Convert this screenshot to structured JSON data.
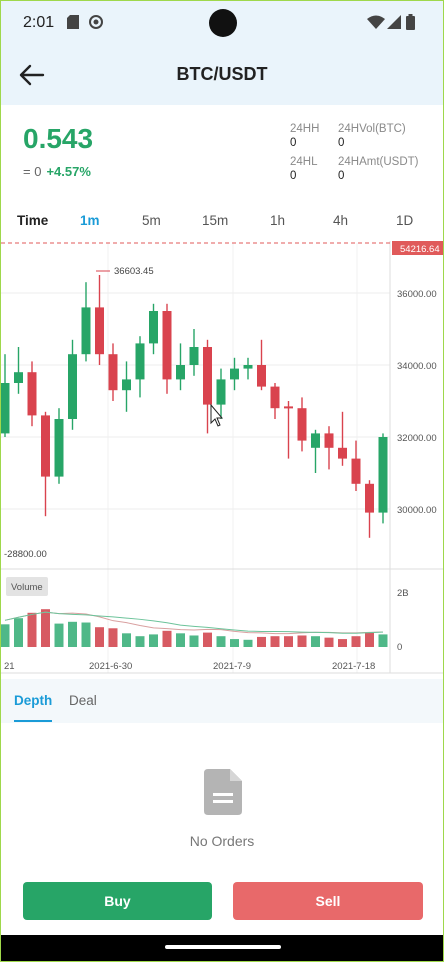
{
  "status_bar": {
    "time": "2:01"
  },
  "header": {
    "title": "BTC/USDT"
  },
  "ticker": {
    "price": "0.543",
    "approx": "= 0",
    "change": "+4.57%",
    "stats": [
      {
        "label": "24HH",
        "value": "0"
      },
      {
        "label": "24HVol(BTC)",
        "value": "0"
      },
      {
        "label": "24HL",
        "value": "0"
      },
      {
        "label": "24HAmt(USDT)",
        "value": "0"
      }
    ]
  },
  "intervals": {
    "label": "Time",
    "options": [
      "1m",
      "5m",
      "15m",
      "1h",
      "4h",
      "1D"
    ],
    "selected": "1m"
  },
  "chart_data": {
    "type": "candlestick",
    "price_axis": [
      "36000.00",
      "34000.00",
      "32000.00",
      "30000.00"
    ],
    "last_price": "54216.64",
    "high_marker": "36603.45",
    "low_marker": "28800.00",
    "volume_label": "Volume",
    "volume_axis": [
      "2B",
      "0"
    ],
    "date_labels": [
      "21",
      "2021-6-30",
      "2021-7-9",
      "2021-7-18"
    ],
    "up_color": "#27a567",
    "down_color": "#d9434e",
    "candles": [
      {
        "open": 32100,
        "close": 33500,
        "high": 34300,
        "low": 32000,
        "volume": 0.63
      },
      {
        "open": 33500,
        "close": 33800,
        "high": 34500,
        "low": 33200,
        "volume": 0.8
      },
      {
        "open": 33800,
        "close": 32600,
        "high": 34100,
        "low": 32300,
        "volume": 0.95
      },
      {
        "open": 32600,
        "close": 30900,
        "high": 32700,
        "low": 29800,
        "volume": 1.05
      },
      {
        "open": 30900,
        "close": 32500,
        "high": 32800,
        "low": 30700,
        "volume": 0.65
      },
      {
        "open": 32500,
        "close": 34300,
        "high": 34700,
        "low": 32200,
        "volume": 0.7
      },
      {
        "open": 34300,
        "close": 35600,
        "high": 36300,
        "low": 34100,
        "volume": 0.68
      },
      {
        "open": 35600,
        "close": 34300,
        "high": 36500,
        "low": 34000,
        "volume": 0.55
      },
      {
        "open": 34300,
        "close": 33300,
        "high": 34600,
        "low": 33000,
        "volume": 0.52
      },
      {
        "open": 33300,
        "close": 33600,
        "high": 34100,
        "low": 32700,
        "volume": 0.38
      },
      {
        "open": 33600,
        "close": 34600,
        "high": 34800,
        "low": 33100,
        "volume": 0.3
      },
      {
        "open": 34600,
        "close": 35500,
        "high": 35700,
        "low": 34300,
        "volume": 0.35
      },
      {
        "open": 35500,
        "close": 33600,
        "high": 35700,
        "low": 33200,
        "volume": 0.45
      },
      {
        "open": 33600,
        "close": 34000,
        "high": 34600,
        "low": 33300,
        "volume": 0.38
      },
      {
        "open": 34000,
        "close": 34500,
        "high": 35000,
        "low": 33700,
        "volume": 0.32
      },
      {
        "open": 34500,
        "close": 32900,
        "high": 34700,
        "low": 32100,
        "volume": 0.4
      },
      {
        "open": 32900,
        "close": 33600,
        "high": 33900,
        "low": 32500,
        "volume": 0.3
      },
      {
        "open": 33600,
        "close": 33900,
        "high": 34200,
        "low": 33300,
        "volume": 0.22
      },
      {
        "open": 33900,
        "close": 34000,
        "high": 34200,
        "low": 33600,
        "volume": 0.2
      },
      {
        "open": 34000,
        "close": 33400,
        "high": 34700,
        "low": 33300,
        "volume": 0.28
      },
      {
        "open": 33400,
        "close": 32800,
        "high": 33500,
        "low": 32500,
        "volume": 0.3
      },
      {
        "open": 32850,
        "close": 32800,
        "high": 33000,
        "low": 31400,
        "volume": 0.3
      },
      {
        "open": 32800,
        "close": 31900,
        "high": 33100,
        "low": 31600,
        "volume": 0.32
      },
      {
        "open": 31700,
        "close": 32100,
        "high": 32200,
        "low": 31000,
        "volume": 0.3
      },
      {
        "open": 32100,
        "close": 31700,
        "high": 32300,
        "low": 31100,
        "volume": 0.26
      },
      {
        "open": 31700,
        "close": 31400,
        "high": 32700,
        "low": 31200,
        "volume": 0.22
      },
      {
        "open": 31400,
        "close": 30700,
        "high": 31900,
        "low": 30500,
        "volume": 0.3
      },
      {
        "open": 30700,
        "close": 29900,
        "high": 30800,
        "low": 29200,
        "volume": 0.4
      },
      {
        "open": 29900,
        "close": 32000,
        "high": 32100,
        "low": 29600,
        "volume": 0.35
      }
    ]
  },
  "bottom_tabs": {
    "depth": "Depth",
    "deal": "Deal"
  },
  "empty_state": {
    "text": "No Orders"
  },
  "actions": {
    "buy": "Buy",
    "sell": "Sell"
  }
}
